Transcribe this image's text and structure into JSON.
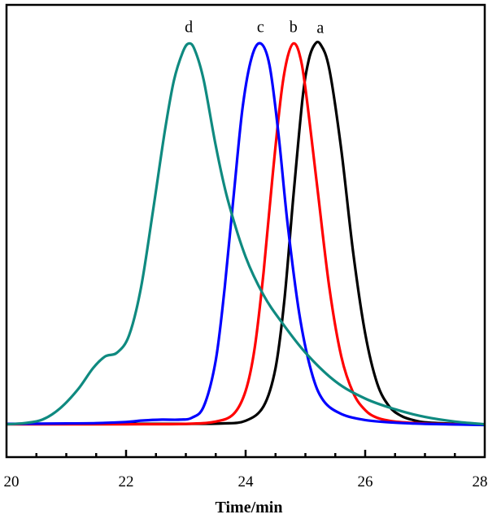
{
  "chart_data": {
    "type": "line",
    "title": "",
    "xlabel": "Time/min",
    "ylabel": "",
    "xlim": [
      20,
      28
    ],
    "ylim": [
      0,
      1
    ],
    "x_ticks": [
      20,
      22,
      24,
      26,
      28
    ],
    "x_minor_ticks": [
      20.5,
      21,
      21.5,
      22.5,
      23,
      23.5,
      24.5,
      25,
      25.5,
      26.5,
      27,
      27.5
    ],
    "y_ticks": [],
    "grid": false,
    "legend": "none",
    "series": [
      {
        "label": "a",
        "color": "#000000",
        "x": [
          20,
          21,
          22,
          23,
          23.6,
          24,
          24.3,
          24.5,
          24.65,
          24.8,
          24.95,
          25.05,
          25.15,
          25.25,
          25.4,
          25.6,
          25.8,
          26,
          26.2,
          26.4,
          26.6,
          26.8,
          27,
          27.5,
          28
        ],
        "y": [
          0.004,
          0.004,
          0.004,
          0.004,
          0.005,
          0.012,
          0.05,
          0.15,
          0.33,
          0.6,
          0.85,
          0.95,
          0.993,
          0.995,
          0.93,
          0.72,
          0.45,
          0.24,
          0.11,
          0.05,
          0.025,
          0.014,
          0.008,
          0.004,
          0.002
        ]
      },
      {
        "label": "b",
        "color": "#ff0000",
        "x": [
          20,
          21,
          22,
          23,
          23.5,
          23.8,
          24,
          24.15,
          24.3,
          24.45,
          24.6,
          24.7,
          24.8,
          24.9,
          25,
          25.2,
          25.4,
          25.6,
          25.8,
          26,
          26.2,
          26.5,
          27,
          27.5,
          28
        ],
        "y": [
          0.003,
          0.003,
          0.003,
          0.004,
          0.01,
          0.03,
          0.09,
          0.2,
          0.4,
          0.65,
          0.87,
          0.96,
          0.997,
          0.97,
          0.88,
          0.62,
          0.36,
          0.18,
          0.085,
          0.04,
          0.02,
          0.01,
          0.005,
          0.003,
          0.002
        ]
      },
      {
        "label": "c",
        "color": "#0000ff",
        "x": [
          20,
          21,
          21.5,
          22,
          22.3,
          22.6,
          22.9,
          23.1,
          23.3,
          23.5,
          23.65,
          23.8,
          23.95,
          24.1,
          24.25,
          24.4,
          24.55,
          24.7,
          24.9,
          25.1,
          25.3,
          25.6,
          26,
          26.5,
          27,
          28
        ],
        "y": [
          0.004,
          0.005,
          0.006,
          0.009,
          0.013,
          0.015,
          0.015,
          0.02,
          0.05,
          0.17,
          0.36,
          0.6,
          0.83,
          0.96,
          0.997,
          0.94,
          0.76,
          0.53,
          0.29,
          0.14,
          0.065,
          0.03,
          0.014,
          0.007,
          0.004,
          0.001
        ]
      },
      {
        "label": "d",
        "color": "#0f8a80",
        "x": [
          20,
          20.3,
          20.6,
          20.9,
          21.2,
          21.45,
          21.65,
          21.85,
          22.05,
          22.25,
          22.45,
          22.65,
          22.8,
          22.95,
          23.05,
          23.15,
          23.3,
          23.5,
          23.7,
          24,
          24.3,
          24.6,
          25,
          25.5,
          26,
          26.5,
          27,
          27.5,
          28
        ],
        "y": [
          0.003,
          0.006,
          0.015,
          0.045,
          0.095,
          0.15,
          0.18,
          0.19,
          0.235,
          0.36,
          0.56,
          0.77,
          0.9,
          0.975,
          0.997,
          0.98,
          0.9,
          0.73,
          0.59,
          0.44,
          0.34,
          0.27,
          0.19,
          0.115,
          0.07,
          0.042,
          0.022,
          0.01,
          0.003
        ]
      }
    ]
  }
}
